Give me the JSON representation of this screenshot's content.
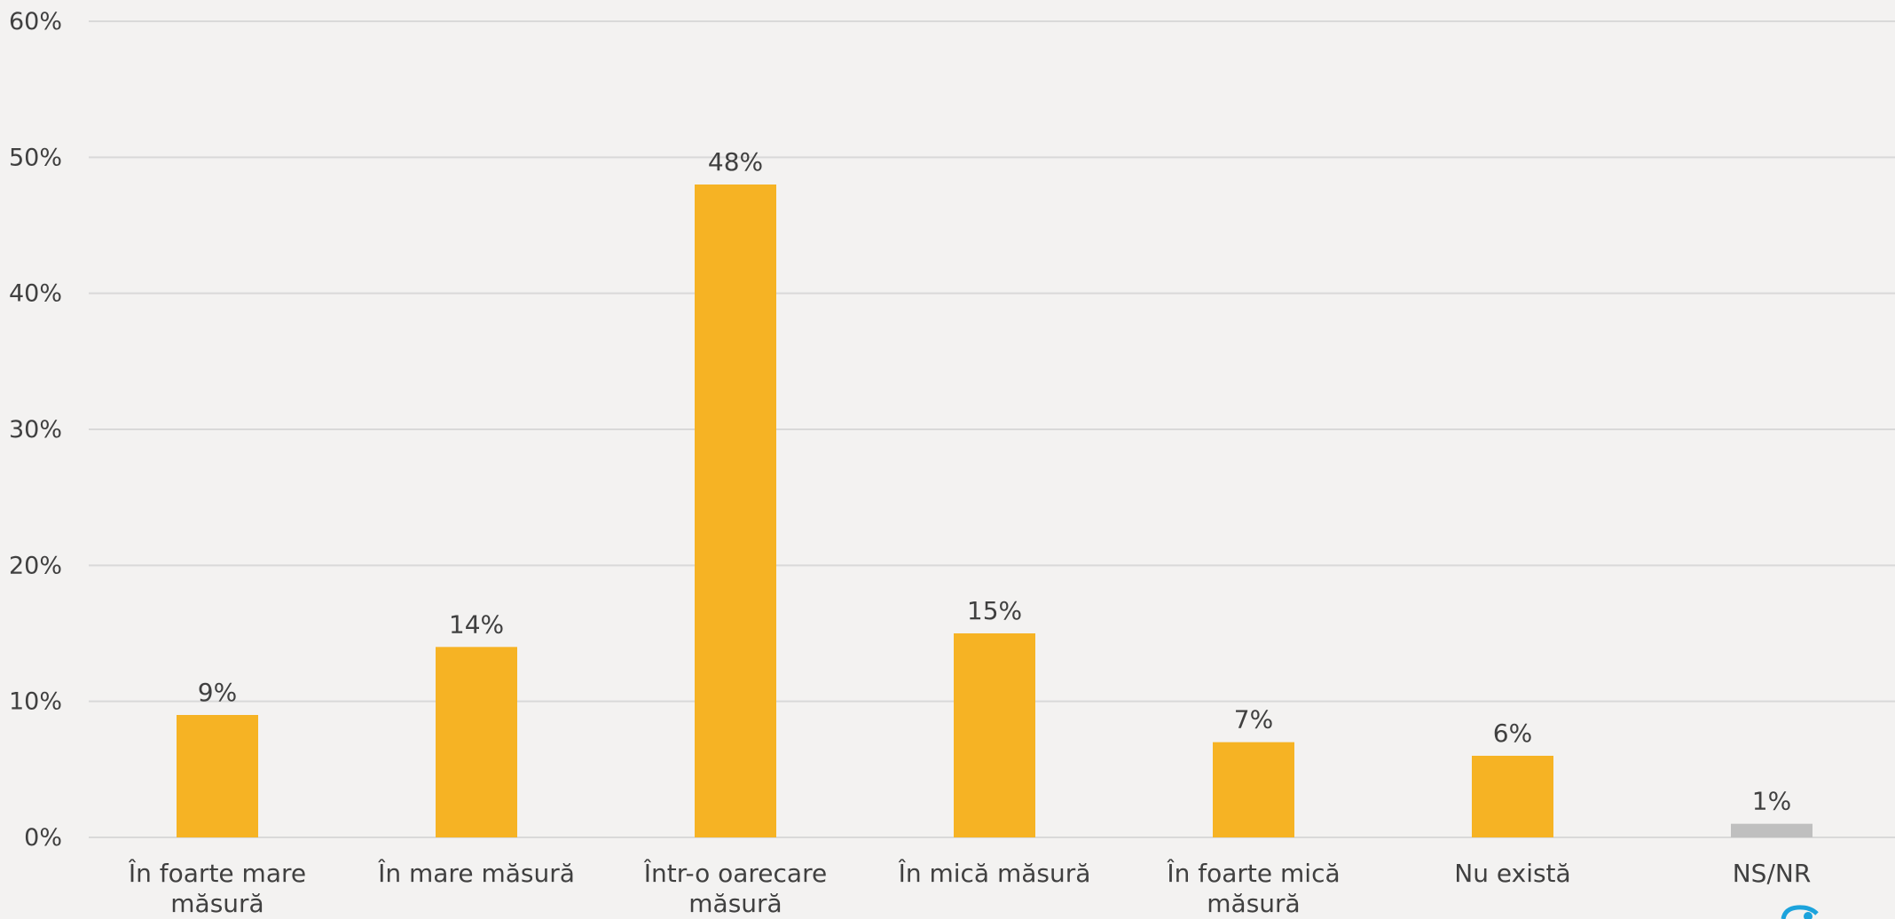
{
  "chart_data": {
    "type": "bar",
    "categories": [
      "În foarte mare măsură",
      "În mare măsură",
      "Într-o oarecare măsură",
      "În mică măsură",
      "În foarte mică măsură",
      "Nu există",
      "NS/NR"
    ],
    "values": [
      9,
      14,
      48,
      15,
      7,
      6,
      1
    ],
    "data_labels": [
      "9%",
      "14%",
      "48%",
      "15%",
      "7%",
      "6%",
      "1%"
    ],
    "bar_colors": [
      "#f6b324",
      "#f6b324",
      "#f6b324",
      "#f6b324",
      "#f6b324",
      "#f6b324",
      "#bfbfbf"
    ],
    "ylim": [
      0,
      60
    ],
    "y_ticks": [
      0,
      10,
      20,
      30,
      40,
      50,
      60
    ],
    "y_tick_labels": [
      "0%",
      "10%",
      "20%",
      "30%",
      "40%",
      "50%",
      "60%"
    ],
    "grid": true,
    "legend": "none",
    "title": "",
    "xlabel": "",
    "ylabel": ""
  },
  "colors": {
    "background": "#f3f2f1",
    "accent": "#f6b324",
    "neutral_bar": "#bfbfbf",
    "gridline": "#d9d9d9",
    "text": "#404040",
    "logo": "#1ca3dc"
  },
  "icons": {
    "corner_logo": "brand-logo-icon"
  }
}
